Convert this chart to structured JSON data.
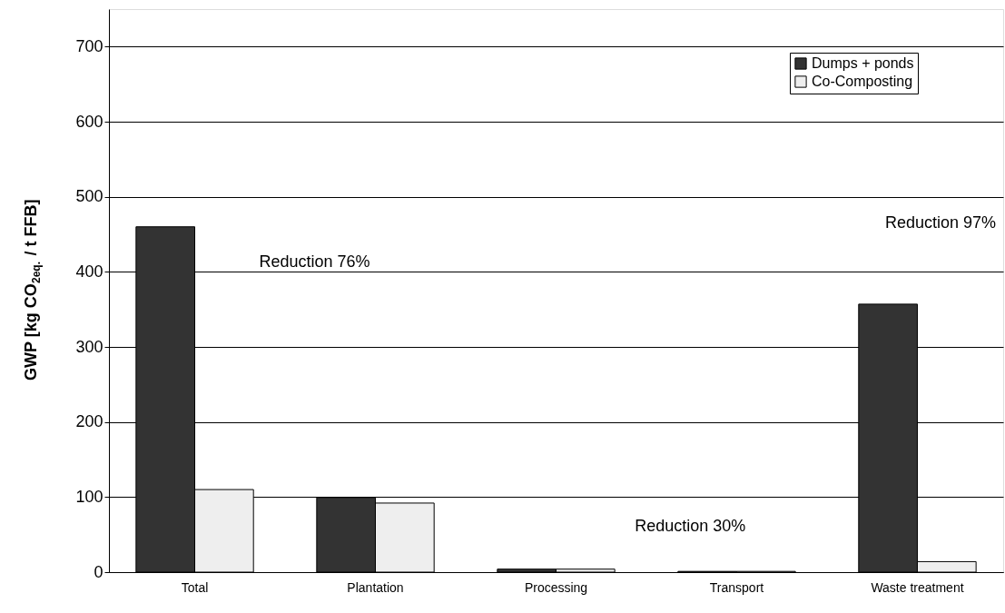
{
  "chart_data": {
    "type": "bar",
    "ylabel": "GWP [kg CO$_{2eq.}$ / t FFB]",
    "categories": [
      "Total",
      "Plantation",
      "Processing",
      "Transport",
      "Waste treatment"
    ],
    "series": [
      {
        "name": "Dumps + ponds",
        "color": "#333333",
        "values": [
          460,
          99,
          4,
          1,
          357
        ]
      },
      {
        "name": "Co-Composting",
        "color": "#eeeeee",
        "values": [
          110,
          92,
          4,
          1,
          14
        ]
      }
    ],
    "ylim": [
      0,
      750
    ],
    "yticks": [
      0,
      100,
      200,
      300,
      400,
      500,
      600,
      700
    ],
    "grid": "y",
    "legend": "top right",
    "annotations": [
      "Reduction 76%",
      "Reduction 30%",
      "Reduction 97%"
    ]
  }
}
